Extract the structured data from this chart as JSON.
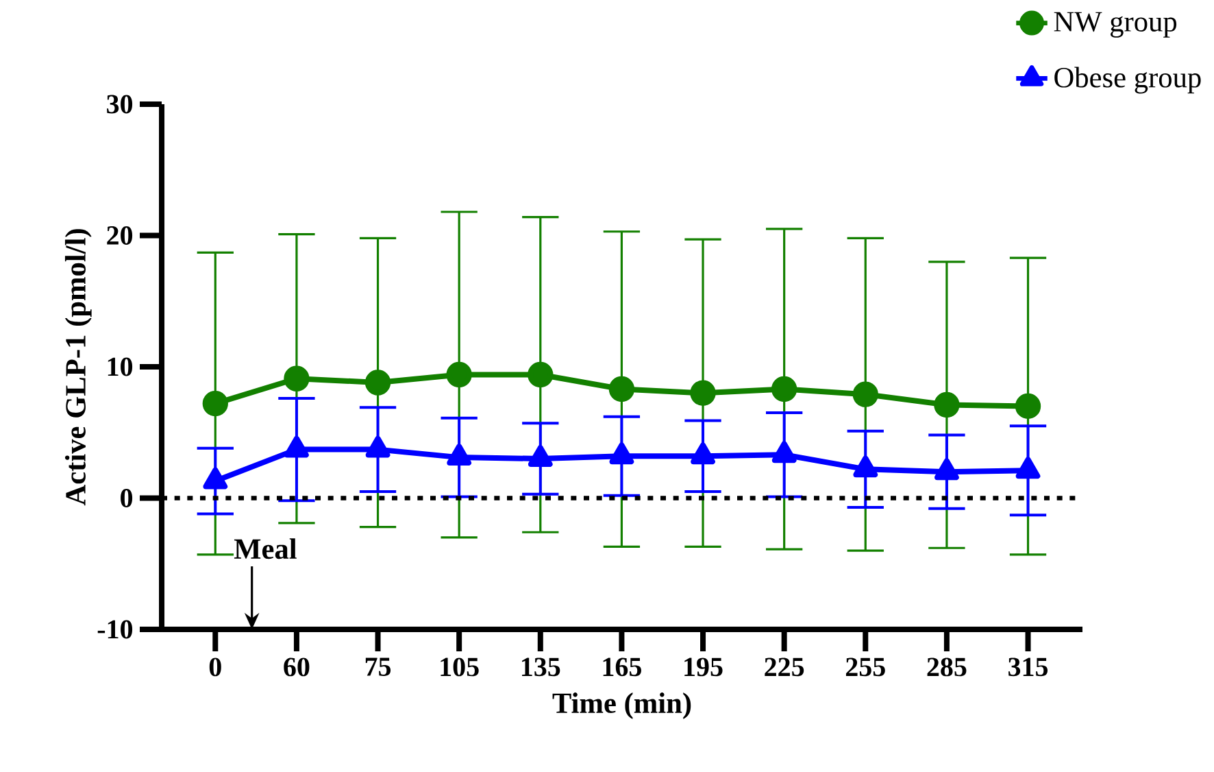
{
  "chart_data": {
    "type": "line",
    "xlabel": "Time (min)",
    "ylabel": "Active GLP-1 (pmol/l)",
    "categories": [
      "0",
      "60",
      "75",
      "105",
      "135",
      "165",
      "195",
      "225",
      "255",
      "285",
      "315"
    ],
    "series": [
      {
        "name": "NW group",
        "color": "#138000",
        "marker": "circle",
        "values": [
          7.2,
          9.1,
          8.8,
          9.4,
          9.4,
          8.3,
          8.0,
          8.3,
          7.9,
          7.1,
          7.0
        ],
        "errors": [
          11.5,
          11.0,
          11.0,
          12.4,
          12.0,
          12.0,
          11.7,
          12.2,
          11.9,
          10.9,
          11.3
        ]
      },
      {
        "name": "Obese group",
        "color": "#0000ff",
        "marker": "triangle",
        "values": [
          1.3,
          3.7,
          3.7,
          3.1,
          3.0,
          3.2,
          3.2,
          3.3,
          2.2,
          2.0,
          2.1
        ],
        "errors": [
          2.5,
          3.9,
          3.2,
          3.0,
          2.7,
          3.0,
          2.7,
          3.2,
          2.9,
          2.8,
          3.4
        ]
      }
    ],
    "ylim": [
      -10,
      30
    ],
    "yticks": [
      -10,
      0,
      10,
      20,
      30
    ],
    "ref_lines": [
      {
        "axis": "y",
        "value": 0,
        "color": "#000000",
        "line_style": "dotted"
      }
    ],
    "annotations": [
      "Meal"
    ],
    "grid": false,
    "legend": "top right",
    "line_style": "solid"
  }
}
